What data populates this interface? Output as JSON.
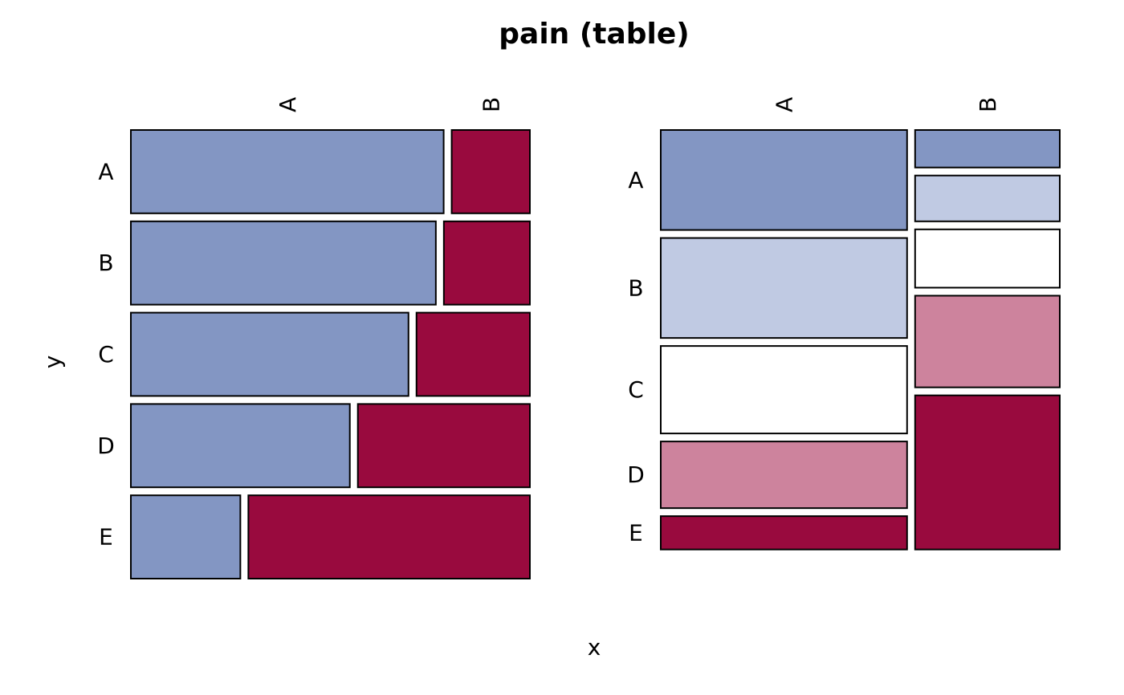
{
  "chart_data": {
    "type": "mosaic",
    "title": "pain (table)",
    "xlabel": "x",
    "ylabel": "y",
    "x_categories": [
      "A",
      "B"
    ],
    "y_categories": [
      "A",
      "B",
      "C",
      "D",
      "E"
    ],
    "colors": {
      "x": {
        "A": "#8396c3",
        "B": "#990a3e"
      },
      "y": {
        "A": "#8396c3",
        "B": "#c0cae3",
        "C": "#ffffff",
        "D": "#cd839d",
        "E": "#990a3e"
      }
    },
    "panels": [
      {
        "kind": "conditional-on-y",
        "rows": [
          {
            "y": "A",
            "x_shares": {
              "A": 0.8,
              "B": 0.2
            }
          },
          {
            "y": "B",
            "x_shares": {
              "A": 0.78,
              "B": 0.22
            }
          },
          {
            "y": "C",
            "x_shares": {
              "A": 0.71,
              "B": 0.29
            }
          },
          {
            "y": "D",
            "x_shares": {
              "A": 0.56,
              "B": 0.44
            }
          },
          {
            "y": "E",
            "x_shares": {
              "A": 0.28,
              "B": 0.72
            }
          }
        ]
      },
      {
        "kind": "conditional-on-x",
        "columns": [
          {
            "x": "A",
            "share": 0.63,
            "y_shares": {
              "A": 0.24,
              "B": 0.24,
              "C": 0.21,
              "D": 0.16,
              "E": 0.08
            }
          },
          {
            "x": "B",
            "share": 0.37,
            "y_shares": {
              "A": 0.09,
              "B": 0.11,
              "C": 0.14,
              "D": 0.22,
              "E": 0.37
            }
          }
        ]
      }
    ]
  }
}
